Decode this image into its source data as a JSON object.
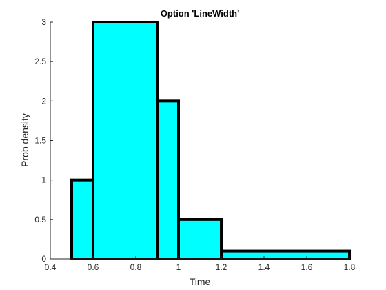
{
  "chart_data": {
    "type": "bar",
    "subtype": "histogram",
    "title": "Option 'LineWidth'",
    "xlabel": "Time",
    "ylabel": "Prob density",
    "xlim": [
      0.4,
      1.8
    ],
    "ylim": [
      0,
      3
    ],
    "xticks": [
      "0.4",
      "0.6",
      "0.8",
      "1",
      "1.2",
      "1.4",
      "1.6",
      "1.8"
    ],
    "yticks": [
      "0",
      "0.5",
      "1",
      "1.5",
      "2",
      "2.5",
      "3"
    ],
    "bin_edges": [
      [
        0.5,
        0.6
      ],
      [
        0.6,
        0.9
      ],
      [
        0.9,
        1.0
      ],
      [
        1.0,
        1.2
      ],
      [
        1.2,
        1.8
      ]
    ],
    "values": [
      1,
      3,
      2,
      0.5,
      0.1
    ],
    "grid": false,
    "face_color": "#00ffff",
    "edge_color": "#000000"
  }
}
